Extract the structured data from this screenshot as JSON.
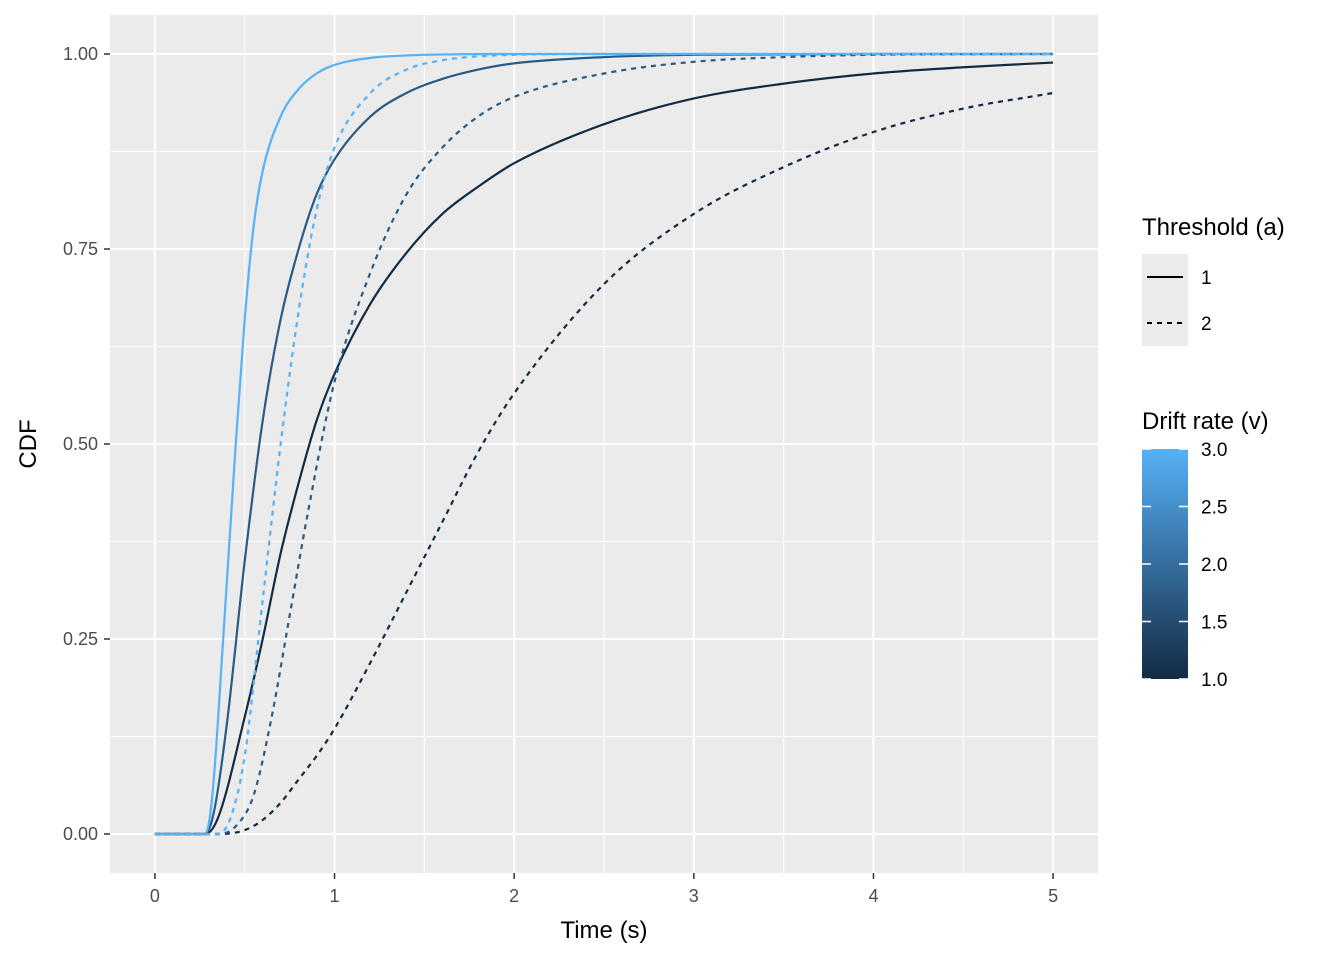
{
  "chart_data": {
    "type": "line",
    "xlabel": "Time (s)",
    "ylabel": "CDF",
    "xlim": [
      -0.25,
      5.25
    ],
    "ylim": [
      -0.05,
      1.05
    ],
    "x_ticks": [
      "0",
      "1",
      "2",
      "3",
      "4",
      "5"
    ],
    "y_ticks": [
      "0.00",
      "0.25",
      "0.50",
      "0.75",
      "1.00"
    ],
    "grid": true,
    "legend_position": "right",
    "legend_linetype": {
      "title": "Threshold (a)",
      "entries": [
        {
          "label": "1",
          "linetype": "solid"
        },
        {
          "label": "2",
          "linetype": "dashed"
        }
      ]
    },
    "legend_color": {
      "title": "Drift rate (v)",
      "min": 1.0,
      "max": 3.0,
      "low_color": "#132B43",
      "high_color": "#56B1F7",
      "tick_labels": [
        "1.0",
        "1.5",
        "2.0",
        "2.5",
        "3.0"
      ]
    },
    "series": [
      {
        "v": 1,
        "a": 1,
        "linetype": "solid",
        "color": "#132B43",
        "points": [
          [
            0,
            0
          ],
          [
            0.28,
            0
          ],
          [
            0.35,
            0.02
          ],
          [
            0.5,
            0.15
          ],
          [
            0.6,
            0.25
          ],
          [
            0.7,
            0.36
          ],
          [
            0.8,
            0.45
          ],
          [
            0.9,
            0.53
          ],
          [
            1.0,
            0.59
          ],
          [
            1.2,
            0.68
          ],
          [
            1.4,
            0.745
          ],
          [
            1.6,
            0.795
          ],
          [
            1.8,
            0.83
          ],
          [
            2.0,
            0.86
          ],
          [
            2.5,
            0.91
          ],
          [
            3.0,
            0.943
          ],
          [
            3.5,
            0.962
          ],
          [
            4.0,
            0.975
          ],
          [
            4.5,
            0.983
          ],
          [
            5.0,
            0.989
          ]
        ]
      },
      {
        "v": 2,
        "a": 1,
        "linetype": "solid",
        "color": "#2A5B85",
        "points": [
          [
            0,
            0
          ],
          [
            0.28,
            0
          ],
          [
            0.33,
            0.03
          ],
          [
            0.4,
            0.14
          ],
          [
            0.5,
            0.35
          ],
          [
            0.6,
            0.53
          ],
          [
            0.7,
            0.66
          ],
          [
            0.8,
            0.75
          ],
          [
            0.9,
            0.82
          ],
          [
            1.0,
            0.865
          ],
          [
            1.2,
            0.92
          ],
          [
            1.4,
            0.95
          ],
          [
            1.6,
            0.968
          ],
          [
            1.8,
            0.98
          ],
          [
            2.0,
            0.988
          ],
          [
            2.5,
            0.996
          ],
          [
            3.0,
            0.999
          ],
          [
            4.0,
            1.0
          ],
          [
            5.0,
            1.0
          ]
        ]
      },
      {
        "v": 3,
        "a": 1,
        "linetype": "solid",
        "color": "#56B1F7",
        "points": [
          [
            0,
            0
          ],
          [
            0.28,
            0
          ],
          [
            0.32,
            0.05
          ],
          [
            0.38,
            0.25
          ],
          [
            0.45,
            0.5
          ],
          [
            0.5,
            0.66
          ],
          [
            0.55,
            0.78
          ],
          [
            0.6,
            0.85
          ],
          [
            0.7,
            0.92
          ],
          [
            0.8,
            0.955
          ],
          [
            0.9,
            0.975
          ],
          [
            1.0,
            0.986
          ],
          [
            1.2,
            0.995
          ],
          [
            1.5,
            0.999
          ],
          [
            2.0,
            1.0
          ],
          [
            5.0,
            1.0
          ]
        ]
      },
      {
        "v": 1,
        "a": 2,
        "linetype": "dashed",
        "color": "#132B43",
        "points": [
          [
            0,
            0
          ],
          [
            0.35,
            0
          ],
          [
            0.5,
            0.005
          ],
          [
            0.6,
            0.018
          ],
          [
            0.7,
            0.04
          ],
          [
            0.8,
            0.07
          ],
          [
            0.9,
            0.1
          ],
          [
            1.0,
            0.135
          ],
          [
            1.2,
            0.22
          ],
          [
            1.4,
            0.31
          ],
          [
            1.6,
            0.4
          ],
          [
            1.8,
            0.49
          ],
          [
            2.0,
            0.565
          ],
          [
            2.5,
            0.705
          ],
          [
            3.0,
            0.795
          ],
          [
            3.5,
            0.855
          ],
          [
            4.0,
            0.9
          ],
          [
            4.5,
            0.93
          ],
          [
            5.0,
            0.95
          ]
        ]
      },
      {
        "v": 2,
        "a": 2,
        "linetype": "dashed",
        "color": "#2A5B85",
        "points": [
          [
            0,
            0
          ],
          [
            0.35,
            0
          ],
          [
            0.45,
            0.01
          ],
          [
            0.55,
            0.05
          ],
          [
            0.65,
            0.15
          ],
          [
            0.75,
            0.28
          ],
          [
            0.85,
            0.41
          ],
          [
            1.0,
            0.58
          ],
          [
            1.2,
            0.72
          ],
          [
            1.4,
            0.82
          ],
          [
            1.6,
            0.88
          ],
          [
            1.8,
            0.92
          ],
          [
            2.0,
            0.945
          ],
          [
            2.5,
            0.975
          ],
          [
            3.0,
            0.99
          ],
          [
            3.5,
            0.996
          ],
          [
            4.0,
            0.999
          ],
          [
            5.0,
            1.0
          ]
        ]
      },
      {
        "v": 3,
        "a": 2,
        "linetype": "dashed",
        "color": "#56B1F7",
        "points": [
          [
            0,
            0
          ],
          [
            0.35,
            0
          ],
          [
            0.42,
            0.02
          ],
          [
            0.5,
            0.1
          ],
          [
            0.6,
            0.3
          ],
          [
            0.7,
            0.5
          ],
          [
            0.8,
            0.67
          ],
          [
            0.9,
            0.8
          ],
          [
            1.0,
            0.88
          ],
          [
            1.2,
            0.95
          ],
          [
            1.4,
            0.98
          ],
          [
            1.6,
            0.992
          ],
          [
            1.8,
            0.997
          ],
          [
            2.0,
            0.999
          ],
          [
            2.5,
            1.0
          ],
          [
            5.0,
            1.0
          ]
        ]
      }
    ]
  }
}
